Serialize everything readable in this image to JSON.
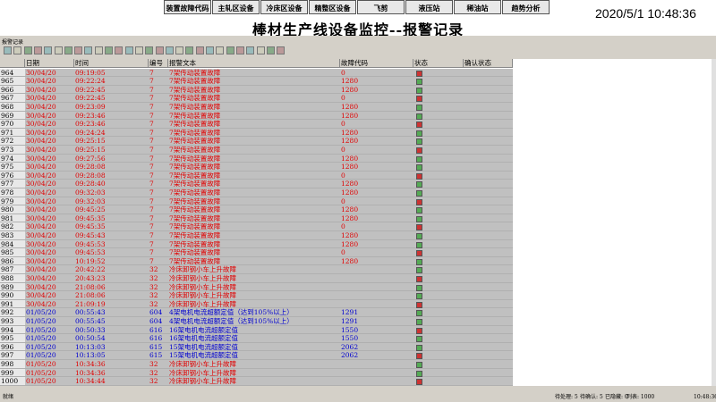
{
  "nav": [
    "装置故障代码",
    "主轧区设备",
    "冷床区设备",
    "精整区设备",
    "飞剪",
    "液压站",
    "稀油站",
    "趋势分析"
  ],
  "datetime": "2020/5/1 10:48:36",
  "title": "棒材生产线设备监控--报警记录",
  "window_title": "报警记录",
  "table": {
    "columns": [
      "日期",
      "时间",
      "编号",
      "报警文本",
      "故障代码",
      "状态",
      "确认状态"
    ],
    "rows": [
      {
        "no": 964,
        "date": "30/04/20",
        "time": "09:19:05",
        "id": 7,
        "text": "7架传动装置故障",
        "code": 0,
        "color": "#e00000"
      },
      {
        "no": 965,
        "date": "30/04/20",
        "time": "09:22:24",
        "id": 7,
        "text": "7架传动装置故障",
        "code": 1280,
        "color": "#e00000"
      },
      {
        "no": 966,
        "date": "30/04/20",
        "time": "09:22:45",
        "id": 7,
        "text": "7架传动装置故障",
        "code": 1280,
        "color": "#e00000"
      },
      {
        "no": 967,
        "date": "30/04/20",
        "time": "09:22:45",
        "id": 7,
        "text": "7架传动装置故障",
        "code": 0,
        "color": "#e00000"
      },
      {
        "no": 968,
        "date": "30/04/20",
        "time": "09:23:09",
        "id": 7,
        "text": "7架传动装置故障",
        "code": 1280,
        "color": "#e00000"
      },
      {
        "no": 969,
        "date": "30/04/20",
        "time": "09:23:46",
        "id": 7,
        "text": "7架传动装置故障",
        "code": 1280,
        "color": "#e00000"
      },
      {
        "no": 970,
        "date": "30/04/20",
        "time": "09:23:46",
        "id": 7,
        "text": "7架传动装置故障",
        "code": 0,
        "color": "#e00000"
      },
      {
        "no": 971,
        "date": "30/04/20",
        "time": "09:24:24",
        "id": 7,
        "text": "7架传动装置故障",
        "code": 1280,
        "color": "#e00000"
      },
      {
        "no": 972,
        "date": "30/04/20",
        "time": "09:25:15",
        "id": 7,
        "text": "7架传动装置故障",
        "code": 1280,
        "color": "#e00000"
      },
      {
        "no": 973,
        "date": "30/04/20",
        "time": "09:25:15",
        "id": 7,
        "text": "7架传动装置故障",
        "code": 0,
        "color": "#e00000"
      },
      {
        "no": 974,
        "date": "30/04/20",
        "time": "09:27:56",
        "id": 7,
        "text": "7架传动装置故障",
        "code": 1280,
        "color": "#e00000"
      },
      {
        "no": 975,
        "date": "30/04/20",
        "time": "09:28:08",
        "id": 7,
        "text": "7架传动装置故障",
        "code": 1280,
        "color": "#e00000"
      },
      {
        "no": 976,
        "date": "30/04/20",
        "time": "09:28:08",
        "id": 7,
        "text": "7架传动装置故障",
        "code": 0,
        "color": "#e00000"
      },
      {
        "no": 977,
        "date": "30/04/20",
        "time": "09:28:40",
        "id": 7,
        "text": "7架传动装置故障",
        "code": 1280,
        "color": "#e00000"
      },
      {
        "no": 978,
        "date": "30/04/20",
        "time": "09:32:03",
        "id": 7,
        "text": "7架传动装置故障",
        "code": 1280,
        "color": "#e00000"
      },
      {
        "no": 979,
        "date": "30/04/20",
        "time": "09:32:03",
        "id": 7,
        "text": "7架传动装置故障",
        "code": 0,
        "color": "#e00000"
      },
      {
        "no": 980,
        "date": "30/04/20",
        "time": "09:45:25",
        "id": 7,
        "text": "7架传动装置故障",
        "code": 1280,
        "color": "#e00000"
      },
      {
        "no": 981,
        "date": "30/04/20",
        "time": "09:45:35",
        "id": 7,
        "text": "7架传动装置故障",
        "code": 1280,
        "color": "#e00000"
      },
      {
        "no": 982,
        "date": "30/04/20",
        "time": "09:45:35",
        "id": 7,
        "text": "7架传动装置故障",
        "code": 0,
        "color": "#e00000"
      },
      {
        "no": 983,
        "date": "30/04/20",
        "time": "09:45:43",
        "id": 7,
        "text": "7架传动装置故障",
        "code": 1280,
        "color": "#e00000"
      },
      {
        "no": 984,
        "date": "30/04/20",
        "time": "09:45:53",
        "id": 7,
        "text": "7架传动装置故障",
        "code": 1280,
        "color": "#e00000"
      },
      {
        "no": 985,
        "date": "30/04/20",
        "time": "09:45:53",
        "id": 7,
        "text": "7架传动装置故障",
        "code": 0,
        "color": "#e00000"
      },
      {
        "no": 986,
        "date": "30/04/20",
        "time": "10:19:52",
        "id": 7,
        "text": "7架传动装置故障",
        "code": 1280,
        "color": "#e00000"
      },
      {
        "no": 987,
        "date": "30/04/20",
        "time": "20:42:22",
        "id": 32,
        "text": "冷床卸钢小车上升故障",
        "code": null,
        "color": "#e00000"
      },
      {
        "no": 988,
        "date": "30/04/20",
        "time": "20:43:23",
        "id": 32,
        "text": "冷床卸钢小车上升故障",
        "code": null,
        "color": "#e00000"
      },
      {
        "no": 989,
        "date": "30/04/20",
        "time": "21:08:06",
        "id": 32,
        "text": "冷床卸钢小车上升故障",
        "code": null,
        "color": "#e00000"
      },
      {
        "no": 990,
        "date": "30/04/20",
        "time": "21:08:06",
        "id": 32,
        "text": "冷床卸钢小车上升故障",
        "code": null,
        "color": "#e00000"
      },
      {
        "no": 991,
        "date": "30/04/20",
        "time": "21:09:19",
        "id": 32,
        "text": "冷床卸钢小车上升故障",
        "code": null,
        "color": "#e00000"
      },
      {
        "no": 992,
        "date": "01/05/20",
        "time": "00:55:43",
        "id": 604,
        "text": "4架电机电流超额定值（达到105%以上）",
        "code": 1291,
        "color": "#0000d0"
      },
      {
        "no": 993,
        "date": "01/05/20",
        "time": "00:55:45",
        "id": 604,
        "text": "4架电机电流超额定值（达到105%以上）",
        "code": 1291,
        "color": "#0000d0"
      },
      {
        "no": 994,
        "date": "01/05/20",
        "time": "00:50:33",
        "id": 616,
        "text": "16架电机电流超额定值",
        "code": 1550,
        "color": "#0000d0"
      },
      {
        "no": 995,
        "date": "01/05/20",
        "time": "00:50:54",
        "id": 616,
        "text": "16架电机电流超额定值",
        "code": 1550,
        "color": "#0000d0"
      },
      {
        "no": 996,
        "date": "01/05/20",
        "time": "10:13:03",
        "id": 615,
        "text": "15架电机电流超额定值",
        "code": 2062,
        "color": "#0000d0"
      },
      {
        "no": 997,
        "date": "01/05/20",
        "time": "10:13:05",
        "id": 615,
        "text": "15架电机电流超额定值",
        "code": 2062,
        "color": "#0000d0"
      },
      {
        "no": 998,
        "date": "01/05/20",
        "time": "10:34:36",
        "id": 32,
        "text": "冷床卸钢小车上升故障",
        "code": null,
        "color": "#e00000"
      },
      {
        "no": 999,
        "date": "01/05/20",
        "time": "10:34:36",
        "id": 32,
        "text": "冷床卸钢小车上升故障",
        "code": null,
        "color": "#e00000"
      },
      {
        "no": 1000,
        "date": "01/05/20",
        "time": "10:34:44",
        "id": 32,
        "text": "冷床卸钢小车上升故障",
        "code": null,
        "color": "#e00000"
      }
    ]
  },
  "status_bar": {
    "left": "就绪",
    "pending": "待处理: 5",
    "unconfirmed": "待确认: 5",
    "hidden": "已隐藏: 0",
    "list": "列表: 1000",
    "time": "10:48:36"
  }
}
